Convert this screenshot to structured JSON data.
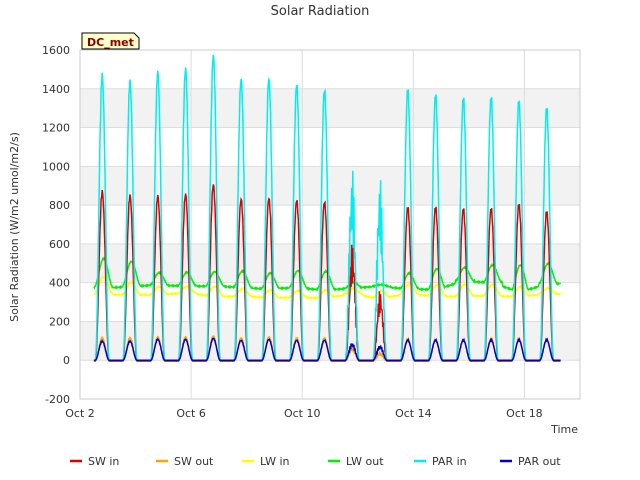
{
  "chart_data": {
    "type": "line",
    "title": "Solar Radiation",
    "xlabel": "Time",
    "ylabel": "Solar Radiation (W/m2 umol/m2/s)",
    "badge": "DC_met",
    "ylim": [
      -200,
      1600
    ],
    "yticks": [
      -200,
      0,
      200,
      400,
      600,
      800,
      1000,
      1200,
      1400,
      1600
    ],
    "xlim": [
      2.0,
      20.0
    ],
    "xticks": [
      {
        "value": 2,
        "label": "Oct 2"
      },
      {
        "value": 6,
        "label": "Oct 6"
      },
      {
        "value": 10,
        "label": "Oct 10"
      },
      {
        "value": 14,
        "label": "Oct 14"
      },
      {
        "value": 18,
        "label": "Oct 18"
      }
    ],
    "grid": true,
    "legend_position": "bottom",
    "day_peaks": {
      "days": [
        2.8,
        3.8,
        4.8,
        5.8,
        6.8,
        7.8,
        8.8,
        9.8,
        10.8,
        11.8,
        12.8,
        13.8,
        14.8,
        15.8,
        16.8,
        17.8,
        18.8
      ],
      "PAR_in": [
        1480,
        1450,
        1500,
        1520,
        1590,
        1470,
        1470,
        1440,
        1410,
        910,
        870,
        1410,
        1380,
        1360,
        1360,
        1340,
        1300
      ],
      "SW_in": [
        880,
        860,
        860,
        870,
        920,
        845,
        850,
        840,
        830,
        510,
        300,
        800,
        800,
        790,
        790,
        810,
        770
      ],
      "SW_out": [
        120,
        120,
        125,
        125,
        130,
        120,
        125,
        120,
        120,
        70,
        40,
        115,
        110,
        110,
        115,
        115,
        110
      ],
      "PAR_out": [
        100,
        100,
        110,
        110,
        115,
        105,
        110,
        105,
        105,
        70,
        60,
        105,
        105,
        105,
        105,
        105,
        105
      ],
      "LW_out_peak": [
        525,
        510,
        450,
        455,
        455,
        460,
        450,
        460,
        460,
        400,
        390,
        450,
        470,
        480,
        490,
        490,
        500
      ],
      "LW_out_night": [
        375,
        380,
        385,
        385,
        380,
        375,
        370,
        370,
        365,
        370,
        380,
        370,
        360,
        410,
        400,
        350,
        395
      ],
      "LW_in_peak": [
        430,
        400,
        380,
        380,
        380,
        370,
        360,
        360,
        360,
        370,
        360,
        390,
        390,
        390,
        390,
        380,
        370
      ],
      "LW_in_night": [
        340,
        335,
        340,
        345,
        330,
        330,
        320,
        325,
        320,
        340,
        320,
        340,
        330,
        330,
        330,
        330,
        340
      ]
    },
    "series": [
      {
        "name": "SW in",
        "color": "#dd0000",
        "key": "SW_in"
      },
      {
        "name": "SW out",
        "color": "#ffa500",
        "key": "SW_out"
      },
      {
        "name": "LW in",
        "color": "#ffff00",
        "key": "LW_in"
      },
      {
        "name": "LW out",
        "color": "#00ee00",
        "key": "LW_out"
      },
      {
        "name": "PAR in",
        "color": "#00eeee",
        "key": "PAR_in"
      },
      {
        "name": "PAR out",
        "color": "#0000cc",
        "key": "PAR_out"
      }
    ]
  }
}
